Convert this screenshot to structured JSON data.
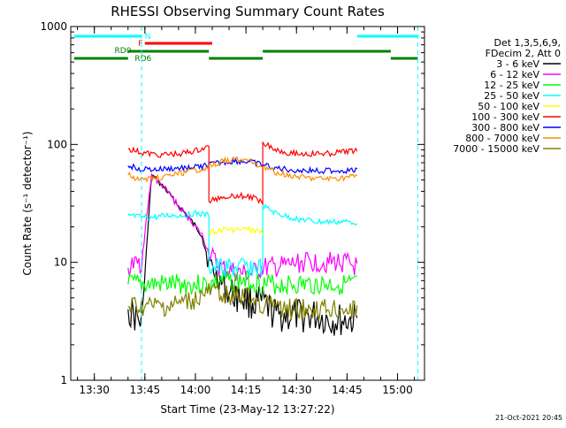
{
  "chart_data": {
    "type": "line",
    "title": "RHESSI Observing Summary Count Rates",
    "xlabel": "Start Time (23-May-12 13:27:22)",
    "ylabel": "Count Rate (s⁻¹ detector⁻¹)",
    "yscale": "log",
    "xlim": [
      "13:23",
      "15:08"
    ],
    "ylim": [
      1,
      1000
    ],
    "x_ticks": [
      "13:30",
      "13:45",
      "14:00",
      "14:15",
      "14:30",
      "14:45",
      "15:00"
    ],
    "y_ticks": [
      "1",
      "10",
      "100",
      "1000"
    ],
    "legend_header": [
      "Det 1,3,5,6,9,",
      "FDecim 2, Att 0"
    ],
    "legend_position": "right",
    "timestamp": "21-Oct-2021 20:45",
    "flags": {
      "N": {
        "label": "N",
        "color": "#00ffff",
        "segments": [
          [
            "13:24",
            "13:44"
          ],
          [
            "14:48",
            "15:06"
          ]
        ]
      },
      "F": {
        "label": "F",
        "color": "#ff0000",
        "segments": [
          [
            "13:45",
            "14:05"
          ]
        ]
      },
      "RD0": {
        "label": "RD0",
        "color": "#008000",
        "segments": [
          [
            "13:40",
            "14:04"
          ],
          [
            "14:20",
            "14:58"
          ]
        ]
      },
      "RD6": {
        "label": "RD6",
        "color": "#008000",
        "segments": [
          [
            "13:24",
            "13:40"
          ],
          [
            "14:04",
            "14:20"
          ],
          [
            "14:58",
            "15:06"
          ]
        ]
      }
    },
    "vlines": [
      {
        "x": "13:44",
        "color": "#00ffff"
      },
      {
        "x": "15:06",
        "color": "#00ffff"
      }
    ],
    "series": [
      {
        "name": "3 - 6 keV",
        "color": "#000000",
        "x": [
          "13:40",
          "13:44",
          "13:47",
          "13:51",
          "13:55",
          "13:59",
          "14:02",
          "14:04",
          "14:07",
          "14:10",
          "14:14",
          "14:17",
          "14:20",
          "14:24",
          "14:28",
          "14:32",
          "14:36",
          "14:40",
          "14:44",
          "14:48"
        ],
        "y": [
          4,
          3,
          55,
          42,
          30,
          22,
          17,
          10,
          7,
          5.5,
          5,
          4.5,
          4.5,
          3.5,
          3.5,
          3.5,
          3.5,
          3.2,
          3.2,
          3.2
        ]
      },
      {
        "name": "6 - 12 keV",
        "color": "#ff00ff",
        "x": [
          "13:40",
          "13:44",
          "13:47",
          "13:51",
          "13:55",
          "13:59",
          "14:02",
          "14:04",
          "14:07",
          "14:10",
          "14:14",
          "14:17",
          "14:20",
          "14:24",
          "14:28",
          "14:32",
          "14:36",
          "14:40",
          "14:44",
          "14:48"
        ],
        "y": [
          9,
          10,
          55,
          42,
          30,
          22,
          17,
          12,
          9,
          8.5,
          8,
          8,
          9,
          9,
          9.5,
          10,
          10,
          10,
          10,
          9
        ]
      },
      {
        "name": "12 - 25 keV",
        "color": "#00ff00",
        "x": [
          "13:40",
          "13:44",
          "13:48",
          "13:52",
          "13:56",
          "14:00",
          "14:04",
          "14:08",
          "14:12",
          "14:16",
          "14:20",
          "14:24",
          "14:28",
          "14:32",
          "14:36",
          "14:40",
          "14:44",
          "14:48"
        ],
        "y": [
          6.5,
          6.5,
          6.5,
          6.5,
          6.5,
          6.5,
          6.5,
          7,
          7,
          7,
          6.5,
          6.5,
          6.5,
          6.5,
          6.5,
          6.5,
          6.5,
          6.5
        ]
      },
      {
        "name": "25 - 50 keV",
        "color": "#00ffff",
        "x": [
          "13:40",
          "13:44",
          "13:48",
          "13:52",
          "13:56",
          "14:00",
          "14:04",
          "14:04",
          "14:08",
          "14:12",
          "14:16",
          "14:20",
          "14:20",
          "14:24",
          "14:28",
          "14:32",
          "14:36",
          "14:40",
          "14:44",
          "14:48"
        ],
        "y": [
          25,
          24,
          24,
          25,
          25,
          26,
          25,
          9,
          9,
          9,
          9,
          9,
          30,
          26,
          24,
          23,
          22,
          22,
          22,
          22
        ]
      },
      {
        "name": "50 - 100 keV",
        "color": "#ffff00",
        "x": [
          "14:04",
          "14:08",
          "14:12",
          "14:16",
          "14:20"
        ],
        "y": [
          18,
          19,
          19,
          19,
          18
        ]
      },
      {
        "name": "100 - 300 keV",
        "color": "#ff0000",
        "x": [
          "13:40",
          "13:44",
          "13:48",
          "13:52",
          "13:56",
          "14:00",
          "14:04",
          "14:04",
          "14:08",
          "14:12",
          "14:16",
          "14:20",
          "14:20",
          "14:24",
          "14:28",
          "14:32",
          "14:36",
          "14:40",
          "14:44",
          "14:48"
        ],
        "y": [
          92,
          85,
          82,
          82,
          84,
          88,
          95,
          33,
          36,
          37,
          36,
          33,
          105,
          90,
          85,
          83,
          83,
          84,
          86,
          90
        ]
      },
      {
        "name": "300 - 800 keV",
        "color": "#0000ff",
        "x": [
          "13:40",
          "13:44",
          "13:48",
          "13:52",
          "13:56",
          "14:00",
          "14:04",
          "14:08",
          "14:12",
          "14:16",
          "14:20",
          "14:24",
          "14:28",
          "14:32",
          "14:36",
          "14:40",
          "14:44",
          "14:48"
        ],
        "y": [
          66,
          62,
          61,
          62,
          63,
          64,
          67,
          70,
          72,
          71,
          67,
          63,
          61,
          60,
          60,
          60,
          60,
          60
        ]
      },
      {
        "name": "800 - 7000 keV",
        "color": "#ff8c00",
        "x": [
          "13:40",
          "13:44",
          "13:48",
          "13:52",
          "13:56",
          "14:00",
          "14:04",
          "14:08",
          "14:12",
          "14:16",
          "14:20",
          "14:24",
          "14:28",
          "14:32",
          "14:36",
          "14:40",
          "14:44",
          "14:48"
        ],
        "y": [
          55,
          50,
          52,
          54,
          57,
          60,
          65,
          72,
          75,
          72,
          65,
          58,
          55,
          52,
          51,
          51,
          52,
          54
        ]
      },
      {
        "name": "7000 - 15000 keV",
        "color": "#808000",
        "x": [
          "13:40",
          "13:44",
          "13:48",
          "13:52",
          "13:56",
          "14:00",
          "14:04",
          "14:08",
          "14:12",
          "14:16",
          "14:20",
          "14:24",
          "14:28",
          "14:32",
          "14:36",
          "14:40",
          "14:44",
          "14:48"
        ],
        "y": [
          4.2,
          4.2,
          4.2,
          4.2,
          4.5,
          4.8,
          5.5,
          5.5,
          5.2,
          5,
          4.5,
          4.2,
          4,
          4,
          4,
          4,
          4,
          4
        ]
      }
    ]
  }
}
